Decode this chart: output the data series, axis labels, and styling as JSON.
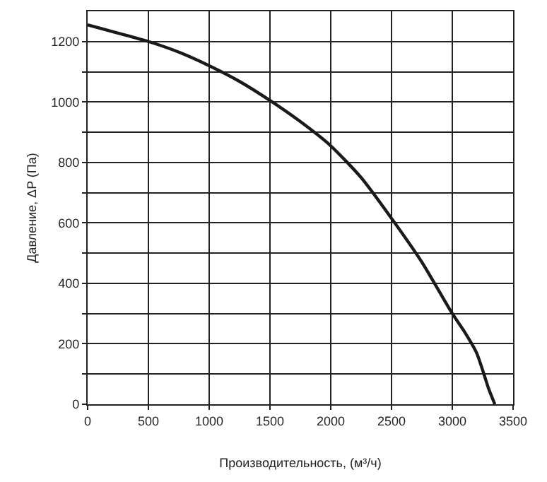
{
  "chart_data": {
    "type": "line",
    "xlabel": "Производительность, (м³/ч)",
    "ylabel": "Давление, ΔP (Па)",
    "xlim": [
      0,
      3500
    ],
    "xticks": [
      0,
      500,
      1000,
      1500,
      2000,
      2500,
      3000,
      3500
    ],
    "ylim": [
      0,
      1300
    ],
    "yticks": [
      0,
      {
        "value": 100,
        "label": null
      },
      200,
      {
        "value": 300,
        "label": null
      },
      400,
      {
        "value": 500,
        "label": null
      },
      600,
      {
        "value": 700,
        "label": null
      },
      800,
      {
        "value": 900,
        "label": null
      },
      1000,
      {
        "value": 1100,
        "label": null
      },
      1200
    ],
    "grid": true,
    "line_style": "solid",
    "marker": "none",
    "x": [
      0,
      250,
      500,
      750,
      1000,
      1250,
      1500,
      1750,
      2000,
      2250,
      2500,
      2750,
      3000,
      3100,
      3200,
      3260,
      3300,
      3350
    ],
    "series": [
      {
        "color": "#1a1a1a",
        "values": [
          1255,
          1228,
          1200,
          1165,
          1120,
          1068,
          1005,
          935,
          855,
          750,
          615,
          470,
          300,
          240,
          170,
          100,
          50,
          0
        ]
      }
    ]
  }
}
